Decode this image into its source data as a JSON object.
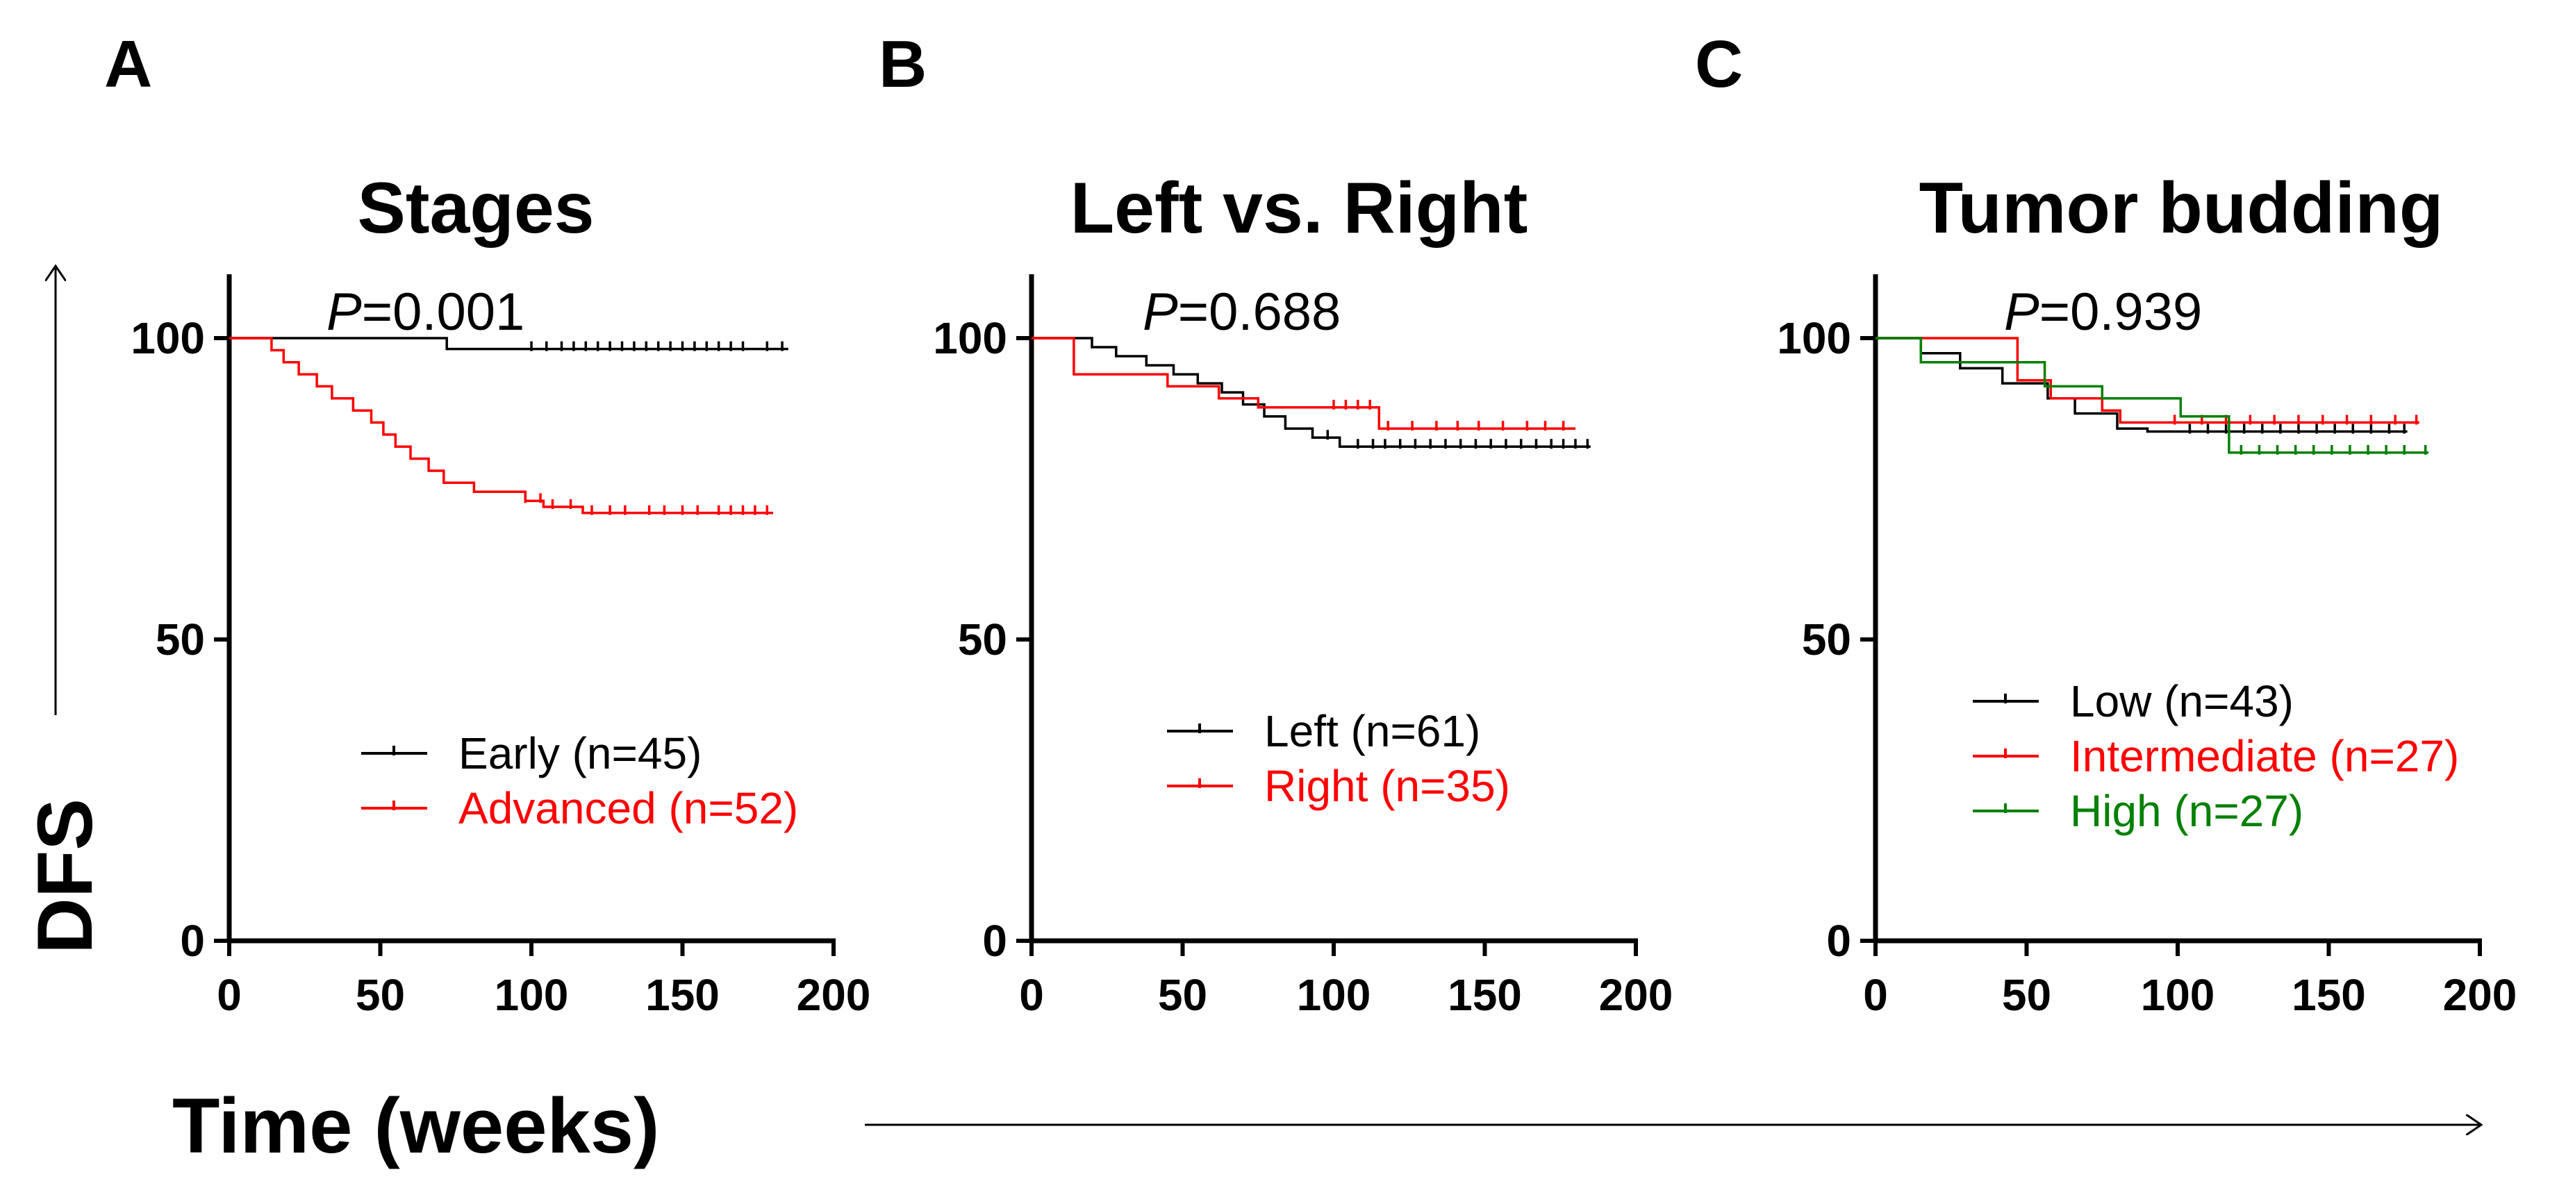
{
  "figure": {
    "y_axis_title": "DFS",
    "x_axis_title": "Time (weeks)"
  },
  "chart_data": [
    {
      "type": "line",
      "subtype": "kaplan-meier",
      "panel": "A",
      "title": "Stages",
      "p_label": "P",
      "p_value": "=0.001",
      "xlabel": "Time (weeks)",
      "ylabel": "DFS",
      "xlim": [
        0,
        200
      ],
      "ylim": [
        0,
        110
      ],
      "xticks": [
        "0",
        "50",
        "100",
        "150",
        "200"
      ],
      "yticks": [
        "0",
        "50",
        "100"
      ],
      "legend_position": "center",
      "series": [
        {
          "name": "Early (n=45)",
          "color": "#000000",
          "steps": [
            [
              0,
              100
            ],
            [
              72,
              100
            ],
            [
              72,
              98.2
            ],
            [
              185,
              98.2
            ]
          ],
          "censors": [
            100,
            105,
            110,
            114,
            118,
            122,
            126,
            130,
            134,
            138,
            142,
            146,
            150,
            154,
            158,
            162,
            166,
            170,
            178,
            183
          ]
        },
        {
          "name": "Advanced (n=52)",
          "color": "#ff0000",
          "steps": [
            [
              0,
              100
            ],
            [
              14,
              100
            ],
            [
              14,
              98
            ],
            [
              18,
              98
            ],
            [
              18,
              96
            ],
            [
              23,
              96
            ],
            [
              23,
              94
            ],
            [
              29,
              94
            ],
            [
              29,
              92
            ],
            [
              34,
              92
            ],
            [
              34,
              90
            ],
            [
              41,
              90
            ],
            [
              41,
              88
            ],
            [
              47,
              88
            ],
            [
              47,
              86
            ],
            [
              51,
              86
            ],
            [
              51,
              84
            ],
            [
              55,
              84
            ],
            [
              55,
              82
            ],
            [
              60,
              82
            ],
            [
              60,
              80
            ],
            [
              66,
              80
            ],
            [
              66,
              78
            ],
            [
              71,
              78
            ],
            [
              71,
              76
            ],
            [
              81,
              76
            ],
            [
              81,
              74.5
            ],
            [
              98,
              74.5
            ],
            [
              98,
              73
            ],
            [
              104,
              73
            ],
            [
              104,
              72
            ],
            [
              117,
              72
            ],
            [
              117,
              71
            ],
            [
              180,
              71
            ]
          ],
          "censors": [
            98,
            103,
            107,
            113,
            120,
            126,
            131,
            139,
            144,
            150,
            155,
            162,
            166,
            170,
            174,
            178
          ]
        }
      ]
    },
    {
      "type": "line",
      "subtype": "kaplan-meier",
      "panel": "B",
      "title": "Left vs. Right",
      "p_label": "P",
      "p_value": "=0.688",
      "xlabel": "Time (weeks)",
      "ylabel": "DFS",
      "xlim": [
        0,
        200
      ],
      "ylim": [
        0,
        110
      ],
      "xticks": [
        "0",
        "50",
        "100",
        "150",
        "200"
      ],
      "yticks": [
        "0",
        "50",
        "100"
      ],
      "legend_position": "center",
      "series": [
        {
          "name": "Left (n=61)",
          "color": "#000000",
          "steps": [
            [
              0,
              100
            ],
            [
              20,
              100
            ],
            [
              20,
              98.5
            ],
            [
              28,
              98.5
            ],
            [
              28,
              97
            ],
            [
              38,
              97
            ],
            [
              38,
              95.5
            ],
            [
              47,
              95.5
            ],
            [
              47,
              94
            ],
            [
              55,
              94
            ],
            [
              55,
              92.5
            ],
            [
              63,
              92.5
            ],
            [
              63,
              91
            ],
            [
              70,
              91
            ],
            [
              70,
              89
            ],
            [
              77,
              89
            ],
            [
              77,
              87
            ],
            [
              84,
              87
            ],
            [
              84,
              85
            ],
            [
              93,
              85
            ],
            [
              93,
              83.5
            ],
            [
              102,
              83.5
            ],
            [
              102,
              82
            ],
            [
              185,
              82
            ]
          ],
          "censors": [
            98,
            108,
            113,
            117,
            122,
            127,
            132,
            137,
            142,
            147,
            152,
            157,
            162,
            167,
            172,
            176,
            180,
            184
          ]
        },
        {
          "name": "Right (n=35)",
          "color": "#ff0000",
          "steps": [
            [
              0,
              100
            ],
            [
              14,
              100
            ],
            [
              14,
              94
            ],
            [
              45,
              94
            ],
            [
              45,
              92
            ],
            [
              62,
              92
            ],
            [
              62,
              90
            ],
            [
              75,
              90
            ],
            [
              75,
              88.5
            ],
            [
              115,
              88.5
            ],
            [
              115,
              85
            ],
            [
              180,
              85
            ]
          ],
          "censors": [
            100,
            104,
            108,
            112,
            118,
            126,
            134,
            141,
            148,
            156,
            164,
            170,
            176
          ]
        }
      ]
    },
    {
      "type": "line",
      "subtype": "kaplan-meier",
      "panel": "C",
      "title": "Tumor budding",
      "p_label": "P",
      "p_value": "=0.939",
      "xlabel": "Time (weeks)",
      "ylabel": "DFS",
      "xlim": [
        0,
        200
      ],
      "ylim": [
        0,
        110
      ],
      "xticks": [
        "0",
        "50",
        "100",
        "150",
        "200"
      ],
      "yticks": [
        "0",
        "50",
        "100"
      ],
      "legend_position": "center",
      "series": [
        {
          "name": "Low (n=43)",
          "color": "#000000",
          "steps": [
            [
              0,
              100
            ],
            [
              15,
              100
            ],
            [
              15,
              97.5
            ],
            [
              28,
              97.5
            ],
            [
              28,
              95
            ],
            [
              42,
              95
            ],
            [
              42,
              92.5
            ],
            [
              57,
              92.5
            ],
            [
              57,
              90
            ],
            [
              66,
              90
            ],
            [
              66,
              87.5
            ],
            [
              80,
              87.5
            ],
            [
              80,
              85
            ],
            [
              90,
              85
            ],
            [
              90,
              84.5
            ],
            [
              176,
              84.5
            ]
          ],
          "censors": [
            104,
            110,
            116,
            122,
            128,
            134,
            140,
            146,
            152,
            158,
            164,
            170,
            175
          ]
        },
        {
          "name": "Intermediate (n=27)",
          "color": "#ff0000",
          "steps": [
            [
              0,
              100
            ],
            [
              47,
              100
            ],
            [
              47,
              93
            ],
            [
              58,
              93
            ],
            [
              58,
              90
            ],
            [
              75,
              90
            ],
            [
              75,
              88
            ],
            [
              81,
              88
            ],
            [
              81,
              86
            ],
            [
              180,
              86
            ]
          ],
          "censors": [
            99,
            108,
            116,
            124,
            132,
            140,
            148,
            156,
            164,
            172,
            179
          ]
        },
        {
          "name": "High (n=27)",
          "color": "#008000",
          "steps": [
            [
              0,
              100
            ],
            [
              15,
              100
            ],
            [
              15,
              96
            ],
            [
              56,
              96
            ],
            [
              56,
              92
            ],
            [
              75,
              92
            ],
            [
              75,
              90
            ],
            [
              101,
              90
            ],
            [
              101,
              87
            ],
            [
              117,
              87
            ],
            [
              117,
              81
            ],
            [
              183,
              81
            ]
          ],
          "censors": [
            121,
            127,
            133,
            139,
            145,
            151,
            157,
            163,
            169,
            175,
            182
          ]
        }
      ]
    }
  ]
}
